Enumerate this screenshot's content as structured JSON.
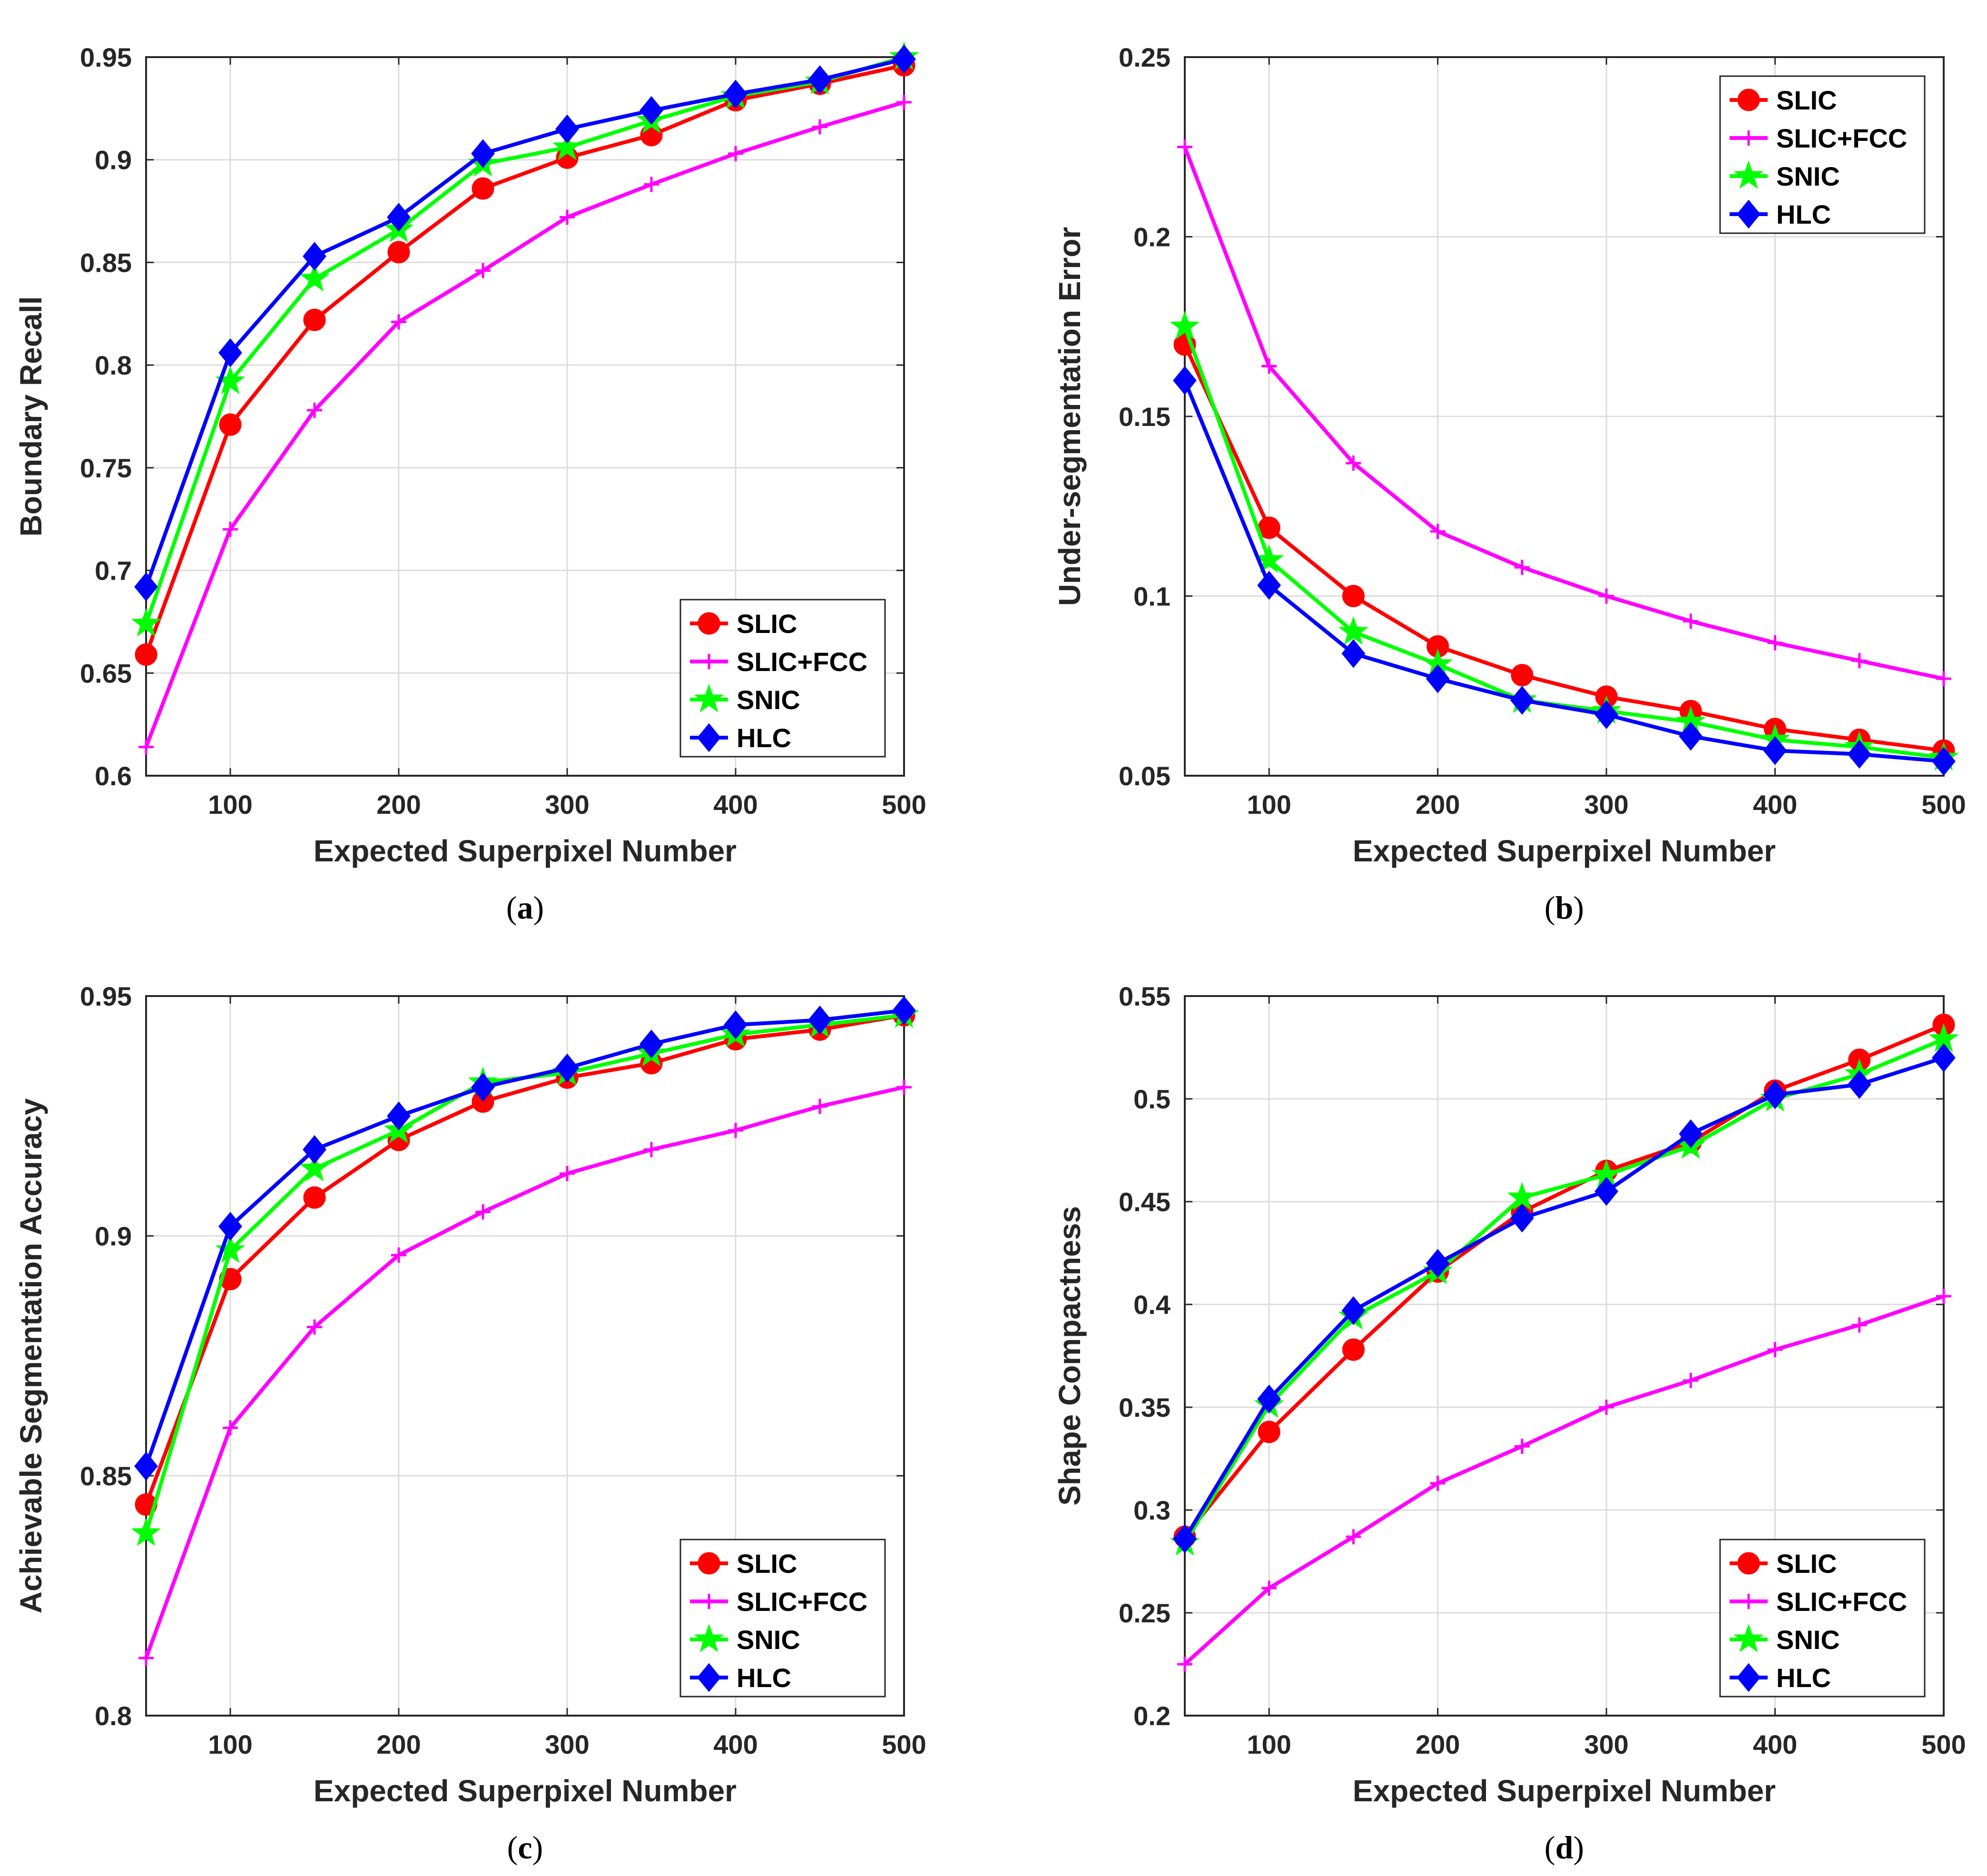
{
  "colors": {
    "SLIC": "#ff0000",
    "SLIC+FCC": "#ff00ff",
    "SNIC": "#00ff00",
    "HLC": "#0000ff"
  },
  "chart_data": [
    {
      "id": "a",
      "type": "line",
      "caption": "a",
      "xlabel": "Expected Superpixel Number",
      "ylabel": "Boundary Recall",
      "xlim": [
        50,
        500
      ],
      "ylim": [
        0.6,
        0.95
      ],
      "xticks": [
        100,
        200,
        300,
        400,
        500
      ],
      "yticks": [
        0.6,
        0.65,
        0.7,
        0.75,
        0.8,
        0.85,
        0.9,
        0.95
      ],
      "ytick_labels": [
        "0.6",
        "0.65",
        "0.7",
        "0.75",
        "0.8",
        "0.85",
        "0.9",
        "0.95"
      ],
      "grid": true,
      "legend_position": "bottom-right",
      "x": [
        50,
        100,
        150,
        200,
        250,
        300,
        350,
        400,
        450,
        500
      ],
      "series": [
        {
          "name": "SLIC",
          "marker": "circle",
          "values": [
            0.659,
            0.771,
            0.822,
            0.855,
            0.886,
            0.901,
            0.912,
            0.929,
            0.937,
            0.946
          ]
        },
        {
          "name": "SLIC+FCC",
          "marker": "plus",
          "values": [
            0.614,
            0.72,
            0.778,
            0.821,
            0.846,
            0.872,
            0.888,
            0.903,
            0.916,
            0.928
          ]
        },
        {
          "name": "SNIC",
          "marker": "star",
          "values": [
            0.674,
            0.792,
            0.842,
            0.866,
            0.898,
            0.906,
            0.919,
            0.931,
            0.938,
            0.95
          ]
        },
        {
          "name": "HLC",
          "marker": "diamond",
          "values": [
            0.692,
            0.806,
            0.853,
            0.872,
            0.903,
            0.915,
            0.924,
            0.932,
            0.939,
            0.949
          ]
        }
      ]
    },
    {
      "id": "b",
      "type": "line",
      "caption": "b",
      "xlabel": "Expected Superpixel Number",
      "ylabel": "Under-segmentation Error",
      "xlim": [
        50,
        500
      ],
      "ylim": [
        0.05,
        0.25
      ],
      "xticks": [
        100,
        200,
        300,
        400,
        500
      ],
      "yticks": [
        0.05,
        0.1,
        0.15,
        0.2,
        0.25
      ],
      "ytick_labels": [
        "0.05",
        "0.1",
        "0.15",
        "0.2",
        "0.25"
      ],
      "grid": true,
      "legend_position": "top-right",
      "x": [
        50,
        100,
        150,
        200,
        250,
        300,
        350,
        400,
        450,
        500
      ],
      "series": [
        {
          "name": "SLIC",
          "marker": "circle",
          "values": [
            0.17,
            0.119,
            0.1,
            0.086,
            0.078,
            0.072,
            0.068,
            0.063,
            0.06,
            0.057
          ]
        },
        {
          "name": "SLIC+FCC",
          "marker": "plus",
          "values": [
            0.225,
            0.164,
            0.137,
            0.118,
            0.108,
            0.1,
            0.093,
            0.087,
            0.082,
            0.077
          ]
        },
        {
          "name": "SNIC",
          "marker": "star",
          "values": [
            0.175,
            0.11,
            0.09,
            0.081,
            0.071,
            0.068,
            0.065,
            0.06,
            0.058,
            0.055
          ]
        },
        {
          "name": "HLC",
          "marker": "diamond",
          "values": [
            0.16,
            0.103,
            0.084,
            0.077,
            0.071,
            0.067,
            0.061,
            0.057,
            0.056,
            0.054
          ]
        }
      ]
    },
    {
      "id": "c",
      "type": "line",
      "caption": "c",
      "xlabel": "Expected Superpixel Number",
      "ylabel": "Achievable Segmentation Accuracy",
      "xlim": [
        50,
        500
      ],
      "ylim": [
        0.8,
        0.95
      ],
      "xticks": [
        100,
        200,
        300,
        400,
        500
      ],
      "yticks": [
        0.8,
        0.85,
        0.9,
        0.95
      ],
      "ytick_labels": [
        "0.8",
        "0.85",
        "0.9",
        "0.95"
      ],
      "grid": true,
      "legend_position": "bottom-right",
      "x": [
        50,
        100,
        150,
        200,
        250,
        300,
        350,
        400,
        450,
        500
      ],
      "series": [
        {
          "name": "SLIC",
          "marker": "circle",
          "values": [
            0.844,
            0.891,
            0.908,
            0.92,
            0.928,
            0.933,
            0.936,
            0.941,
            0.943,
            0.946
          ]
        },
        {
          "name": "SLIC+FCC",
          "marker": "plus",
          "values": [
            0.812,
            0.86,
            0.881,
            0.896,
            0.905,
            0.913,
            0.918,
            0.922,
            0.927,
            0.931
          ]
        },
        {
          "name": "SNIC",
          "marker": "star",
          "values": [
            0.838,
            0.897,
            0.914,
            0.922,
            0.932,
            0.934,
            0.938,
            0.942,
            0.944,
            0.946
          ]
        },
        {
          "name": "HLC",
          "marker": "diamond",
          "values": [
            0.852,
            0.902,
            0.918,
            0.925,
            0.931,
            0.935,
            0.94,
            0.944,
            0.945,
            0.947
          ]
        }
      ]
    },
    {
      "id": "d",
      "type": "line",
      "caption": "d",
      "xlabel": "Expected Superpixel Number",
      "ylabel": "Shape Compactness",
      "xlim": [
        50,
        500
      ],
      "ylim": [
        0.2,
        0.55
      ],
      "xticks": [
        100,
        200,
        300,
        400,
        500
      ],
      "yticks": [
        0.2,
        0.25,
        0.3,
        0.35,
        0.4,
        0.45,
        0.5,
        0.55
      ],
      "ytick_labels": [
        "0.2",
        "0.25",
        "0.3",
        "0.35",
        "0.4",
        "0.45",
        "0.5",
        "0.55"
      ],
      "grid": true,
      "legend_position": "bottom-right",
      "x": [
        50,
        100,
        150,
        200,
        250,
        300,
        350,
        400,
        450,
        500
      ],
      "series": [
        {
          "name": "SLIC",
          "marker": "circle",
          "values": [
            0.287,
            0.338,
            0.378,
            0.416,
            0.445,
            0.465,
            0.479,
            0.504,
            0.519,
            0.536
          ]
        },
        {
          "name": "SLIC+FCC",
          "marker": "plus",
          "values": [
            0.225,
            0.262,
            0.287,
            0.313,
            0.331,
            0.35,
            0.363,
            0.378,
            0.39,
            0.404
          ]
        },
        {
          "name": "SNIC",
          "marker": "star",
          "values": [
            0.284,
            0.351,
            0.394,
            0.416,
            0.452,
            0.463,
            0.477,
            0.5,
            0.512,
            0.529
          ]
        },
        {
          "name": "HLC",
          "marker": "diamond",
          "values": [
            0.286,
            0.354,
            0.397,
            0.42,
            0.442,
            0.455,
            0.483,
            0.502,
            0.507,
            0.52
          ]
        }
      ]
    }
  ]
}
